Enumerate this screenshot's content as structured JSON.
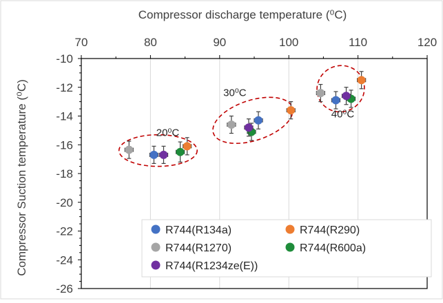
{
  "chart_data": {
    "type": "scatter",
    "x_axis": {
      "label": "Compressor discharge temperature (⁰C)",
      "position": "top",
      "lim": [
        70,
        120
      ],
      "ticks": [
        70,
        80,
        90,
        100,
        110,
        120
      ],
      "tick_labels": [
        "70",
        "80",
        "90",
        "100",
        "110",
        "120"
      ]
    },
    "y_axis": {
      "label": "Compressor Suction temperature (⁰C)",
      "lim": [
        -26,
        -10
      ],
      "ticks": [
        -26,
        -24,
        -22,
        -20,
        -18,
        -16,
        -14,
        -12,
        -10
      ],
      "tick_labels": [
        "-26",
        "-24",
        "-22",
        "-20",
        "-18",
        "-16",
        "-14",
        "-12",
        "-10"
      ]
    },
    "grid": {
      "x": true,
      "y": false
    },
    "legend": {
      "placement": "bottom-right"
    },
    "annotations": [
      {
        "text": "20⁰C",
        "x": 82.5,
        "y": -15.4
      },
      {
        "text": "30⁰C",
        "x": 92.2,
        "y": -12.6
      },
      {
        "text": "40⁰C",
        "x": 107.8,
        "y": -14.1
      }
    ],
    "ellipses": [
      {
        "cx": 81.1,
        "cy": -16.4,
        "rx": 11.3,
        "ry": 1.1
      },
      {
        "cx": 94.8,
        "cy": -14.3,
        "rx": 12.0,
        "ry": 1.4
      },
      {
        "cx": 107.5,
        "cy": -12.1,
        "rx": 6.9,
        "ry": 1.6
      }
    ],
    "series": [
      {
        "name": "R744(R134a)",
        "color": "#4472C4",
        "points": [
          {
            "x": 80.5,
            "y": -16.7,
            "xerr": 0.6,
            "yerr": 0.6
          },
          {
            "x": 95.6,
            "y": -14.3,
            "xerr": 0.6,
            "yerr": 0.6
          },
          {
            "x": 106.8,
            "y": -12.9,
            "xerr": 0.6,
            "yerr": 0.6
          }
        ]
      },
      {
        "name": "R744(R290)",
        "color": "#ED7D31",
        "points": [
          {
            "x": 85.3,
            "y": -16.1,
            "xerr": 0.6,
            "yerr": 0.6
          },
          {
            "x": 100.3,
            "y": -13.6,
            "xerr": 0.6,
            "yerr": 0.6
          },
          {
            "x": 110.5,
            "y": -11.5,
            "xerr": 0.6,
            "yerr": 0.6
          }
        ]
      },
      {
        "name": "R744(R1270)",
        "color": "#A5A5A5",
        "points": [
          {
            "x": 76.9,
            "y": -16.35,
            "xerr": 0.6,
            "yerr": 0.6
          },
          {
            "x": 91.7,
            "y": -14.6,
            "xerr": 0.6,
            "yerr": 0.6
          },
          {
            "x": 104.6,
            "y": -12.4,
            "xerr": 0.6,
            "yerr": 0.6
          }
        ]
      },
      {
        "name": "R744(R600a)",
        "color": "#1E8C3A",
        "points": [
          {
            "x": 84.3,
            "y": -16.5,
            "xerr": 0.6,
            "yerr": 0.7
          },
          {
            "x": 94.6,
            "y": -15.1,
            "xerr": 0.6,
            "yerr": 0.6
          },
          {
            "x": 109.0,
            "y": -12.8,
            "xerr": 0.6,
            "yerr": 0.6
          }
        ]
      },
      {
        "name": "R744(R1234ze(E))",
        "color": "#7030A0",
        "points": [
          {
            "x": 81.9,
            "y": -16.7,
            "xerr": 0.6,
            "yerr": 0.6
          },
          {
            "x": 94.2,
            "y": -14.8,
            "xerr": 0.6,
            "yerr": 0.6
          },
          {
            "x": 108.3,
            "y": -12.6,
            "xerr": 0.6,
            "yerr": 0.6
          }
        ]
      }
    ]
  }
}
